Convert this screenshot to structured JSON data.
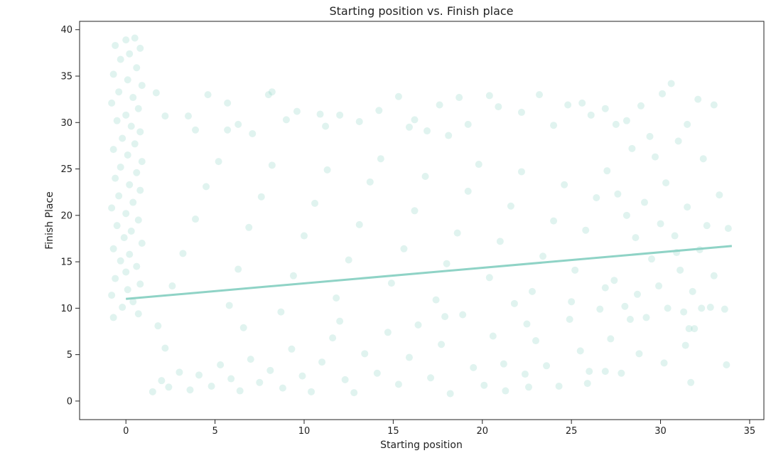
{
  "chart_data": {
    "type": "scatter",
    "title": "Starting position vs. Finish place",
    "xlabel": "Starting position",
    "ylabel": "Finish Place",
    "xlim": [
      -2.6,
      35.8
    ],
    "ylim": [
      -2.0,
      40.9
    ],
    "x_ticks": [
      0,
      5,
      10,
      15,
      20,
      25,
      30,
      35
    ],
    "y_ticks": [
      0,
      5,
      10,
      15,
      20,
      25,
      30,
      35,
      40
    ],
    "grid": false,
    "point_color": "#8fd3c6",
    "point_opacity": 0.28,
    "regression_line": {
      "x": [
        0,
        34
      ],
      "y": [
        11.0,
        16.7
      ]
    },
    "series": [
      {
        "points": [
          [
            0.0,
            38.9
          ],
          [
            0.5,
            39.1
          ],
          [
            -0.6,
            38.3
          ],
          [
            0.8,
            38.0
          ],
          [
            0.2,
            37.4
          ],
          [
            -0.3,
            36.8
          ],
          [
            0.6,
            35.9
          ],
          [
            -0.7,
            35.2
          ],
          [
            0.1,
            34.6
          ],
          [
            0.9,
            34.0
          ],
          [
            -0.4,
            33.3
          ],
          [
            0.4,
            32.7
          ],
          [
            -0.8,
            32.1
          ],
          [
            0.7,
            31.5
          ],
          [
            0.0,
            30.8
          ],
          [
            -0.5,
            30.2
          ],
          [
            0.3,
            29.6
          ],
          [
            0.8,
            29.0
          ],
          [
            -0.2,
            28.3
          ],
          [
            0.5,
            27.7
          ],
          [
            -0.7,
            27.1
          ],
          [
            0.1,
            26.5
          ],
          [
            0.9,
            25.8
          ],
          [
            -0.3,
            25.2
          ],
          [
            0.6,
            24.6
          ],
          [
            -0.6,
            24.0
          ],
          [
            0.2,
            23.3
          ],
          [
            0.8,
            22.7
          ],
          [
            -0.4,
            22.1
          ],
          [
            0.4,
            21.4
          ],
          [
            -0.8,
            20.8
          ],
          [
            0.0,
            20.2
          ],
          [
            0.7,
            19.5
          ],
          [
            -0.5,
            18.9
          ],
          [
            0.3,
            18.3
          ],
          [
            -0.1,
            17.6
          ],
          [
            0.9,
            17.0
          ],
          [
            -0.7,
            16.4
          ],
          [
            0.2,
            15.8
          ],
          [
            -0.3,
            15.1
          ],
          [
            0.6,
            14.5
          ],
          [
            0.0,
            13.9
          ],
          [
            -0.6,
            13.2
          ],
          [
            0.8,
            12.6
          ],
          [
            0.1,
            12.0
          ],
          [
            -0.8,
            11.4
          ],
          [
            0.4,
            10.7
          ],
          [
            -0.2,
            10.1
          ],
          [
            0.7,
            9.4
          ],
          [
            -0.7,
            9.0
          ],
          [
            1.5,
            1.0
          ],
          [
            2.0,
            2.2
          ],
          [
            2.4,
            1.5
          ],
          [
            3.0,
            3.1
          ],
          [
            3.6,
            1.2
          ],
          [
            4.1,
            2.8
          ],
          [
            4.8,
            1.6
          ],
          [
            5.3,
            3.9
          ],
          [
            5.9,
            2.4
          ],
          [
            6.4,
            1.1
          ],
          [
            7.0,
            4.5
          ],
          [
            7.5,
            2.0
          ],
          [
            8.1,
            3.3
          ],
          [
            8.8,
            1.4
          ],
          [
            9.3,
            5.6
          ],
          [
            9.9,
            2.7
          ],
          [
            10.4,
            1.0
          ],
          [
            11.0,
            4.2
          ],
          [
            11.6,
            6.8
          ],
          [
            12.3,
            2.3
          ],
          [
            12.8,
            0.9
          ],
          [
            13.4,
            5.1
          ],
          [
            14.1,
            3.0
          ],
          [
            14.7,
            7.4
          ],
          [
            15.3,
            1.8
          ],
          [
            15.9,
            4.7
          ],
          [
            16.4,
            8.2
          ],
          [
            17.1,
            2.5
          ],
          [
            17.7,
            6.1
          ],
          [
            18.2,
            0.8
          ],
          [
            18.9,
            9.3
          ],
          [
            19.5,
            3.6
          ],
          [
            20.1,
            1.7
          ],
          [
            20.6,
            7.0
          ],
          [
            21.2,
            4.0
          ],
          [
            21.8,
            10.5
          ],
          [
            22.4,
            2.9
          ],
          [
            23.0,
            6.5
          ],
          [
            23.6,
            3.8
          ],
          [
            24.3,
            1.6
          ],
          [
            24.9,
            8.8
          ],
          [
            25.5,
            5.4
          ],
          [
            26.0,
            3.2
          ],
          [
            26.6,
            9.9
          ],
          [
            1.8,
            8.1
          ],
          [
            2.6,
            12.4
          ],
          [
            3.2,
            15.9
          ],
          [
            3.9,
            19.6
          ],
          [
            4.5,
            23.1
          ],
          [
            5.2,
            25.8
          ],
          [
            5.8,
            10.3
          ],
          [
            6.3,
            14.2
          ],
          [
            6.9,
            18.7
          ],
          [
            7.6,
            22.0
          ],
          [
            8.2,
            25.4
          ],
          [
            8.7,
            9.6
          ],
          [
            9.4,
            13.5
          ],
          [
            10.0,
            17.8
          ],
          [
            10.6,
            21.3
          ],
          [
            11.3,
            24.9
          ],
          [
            11.8,
            11.1
          ],
          [
            12.5,
            15.2
          ],
          [
            13.1,
            19.0
          ],
          [
            13.7,
            23.6
          ],
          [
            14.3,
            26.1
          ],
          [
            14.9,
            12.7
          ],
          [
            15.6,
            16.4
          ],
          [
            16.2,
            20.5
          ],
          [
            16.8,
            24.2
          ],
          [
            17.4,
            10.9
          ],
          [
            18.0,
            14.8
          ],
          [
            18.6,
            18.1
          ],
          [
            19.2,
            22.6
          ],
          [
            19.8,
            25.5
          ],
          [
            20.4,
            13.3
          ],
          [
            21.0,
            17.2
          ],
          [
            21.6,
            21.0
          ],
          [
            22.2,
            24.7
          ],
          [
            22.8,
            11.8
          ],
          [
            23.4,
            15.6
          ],
          [
            24.0,
            19.4
          ],
          [
            24.6,
            23.3
          ],
          [
            25.2,
            14.1
          ],
          [
            25.8,
            18.4
          ],
          [
            26.4,
            21.9
          ],
          [
            26.9,
            12.2
          ],
          [
            2.2,
            5.7
          ],
          [
            6.6,
            7.9
          ],
          [
            12.0,
            8.6
          ],
          [
            17.9,
            9.1
          ],
          [
            22.5,
            8.3
          ],
          [
            25.0,
            10.7
          ],
          [
            1.7,
            33.2
          ],
          [
            2.2,
            30.7
          ],
          [
            3.5,
            30.7
          ],
          [
            3.9,
            29.2
          ],
          [
            5.7,
            29.2
          ],
          [
            4.6,
            33.0
          ],
          [
            5.7,
            32.1
          ],
          [
            6.3,
            29.8
          ],
          [
            7.1,
            28.8
          ],
          [
            8.0,
            33.0
          ],
          [
            8.2,
            33.3
          ],
          [
            9.0,
            30.3
          ],
          [
            9.6,
            31.2
          ],
          [
            10.9,
            30.9
          ],
          [
            11.2,
            29.6
          ],
          [
            12.0,
            30.8
          ],
          [
            13.1,
            30.1
          ],
          [
            14.2,
            31.3
          ],
          [
            15.3,
            32.8
          ],
          [
            15.9,
            29.5
          ],
          [
            16.2,
            30.3
          ],
          [
            16.9,
            29.1
          ],
          [
            17.6,
            31.9
          ],
          [
            18.1,
            28.6
          ],
          [
            18.7,
            32.7
          ],
          [
            19.2,
            29.8
          ],
          [
            20.4,
            32.9
          ],
          [
            20.9,
            31.7
          ],
          [
            22.2,
            31.1
          ],
          [
            23.2,
            33.0
          ],
          [
            24.0,
            29.7
          ],
          [
            24.8,
            31.9
          ],
          [
            25.6,
            32.1
          ],
          [
            26.1,
            30.8
          ],
          [
            26.9,
            31.5
          ],
          [
            27.5,
            29.8
          ],
          [
            28.1,
            30.2
          ],
          [
            28.9,
            31.8
          ],
          [
            29.4,
            28.5
          ],
          [
            30.1,
            33.1
          ],
          [
            30.6,
            34.2
          ],
          [
            31.5,
            29.8
          ],
          [
            32.1,
            32.5
          ],
          [
            33.0,
            31.9
          ],
          [
            31.0,
            28.0
          ],
          [
            28.4,
            27.2
          ],
          [
            29.7,
            26.3
          ],
          [
            32.4,
            26.1
          ],
          [
            27.0,
            24.8
          ],
          [
            27.6,
            22.3
          ],
          [
            28.1,
            20.0
          ],
          [
            28.6,
            17.6
          ],
          [
            29.1,
            21.4
          ],
          [
            29.5,
            15.3
          ],
          [
            30.0,
            19.1
          ],
          [
            30.3,
            23.5
          ],
          [
            30.8,
            17.8
          ],
          [
            31.1,
            14.1
          ],
          [
            31.5,
            20.9
          ],
          [
            31.8,
            11.8
          ],
          [
            32.2,
            16.3
          ],
          [
            32.6,
            18.9
          ],
          [
            33.0,
            13.5
          ],
          [
            33.3,
            22.2
          ],
          [
            33.6,
            9.9
          ],
          [
            33.8,
            18.6
          ],
          [
            27.4,
            13.0
          ],
          [
            28.0,
            10.2
          ],
          [
            28.7,
            11.5
          ],
          [
            29.2,
            9.0
          ],
          [
            29.9,
            12.4
          ],
          [
            30.4,
            10.0
          ],
          [
            30.9,
            16.0
          ],
          [
            31.3,
            9.6
          ],
          [
            31.6,
            7.8
          ],
          [
            31.9,
            7.8
          ],
          [
            32.3,
            10.0
          ],
          [
            32.8,
            10.1
          ],
          [
            27.2,
            6.7
          ],
          [
            28.3,
            8.8
          ],
          [
            28.8,
            5.1
          ],
          [
            30.2,
            4.1
          ],
          [
            31.4,
            6.0
          ],
          [
            31.7,
            2.0
          ],
          [
            33.7,
            3.9
          ],
          [
            27.8,
            3.0
          ],
          [
            26.9,
            3.2
          ],
          [
            25.9,
            1.9
          ],
          [
            22.6,
            1.5
          ],
          [
            21.3,
            1.1
          ]
        ]
      }
    ]
  }
}
